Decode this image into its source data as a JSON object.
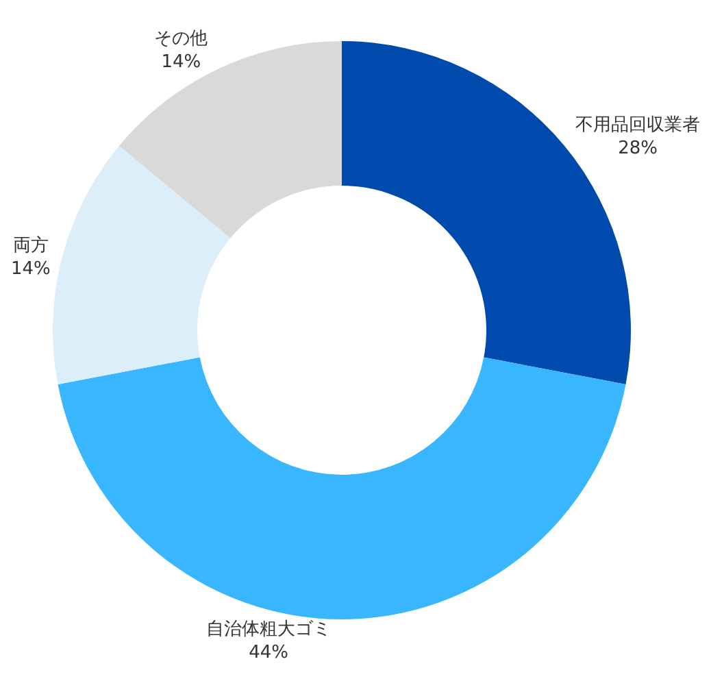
{
  "chart_data": {
    "type": "donut",
    "categories": [
      "不用品回収業者",
      "自治体粗大ゴミ",
      "両方",
      "その他"
    ],
    "values": [
      28,
      44,
      14,
      14
    ],
    "colors": [
      "#004aad",
      "#38b6ff",
      "#dceefa",
      "#d9d9d9"
    ],
    "value_labels": [
      "28%",
      "44%",
      "14%",
      "14%"
    ],
    "legend": false
  }
}
